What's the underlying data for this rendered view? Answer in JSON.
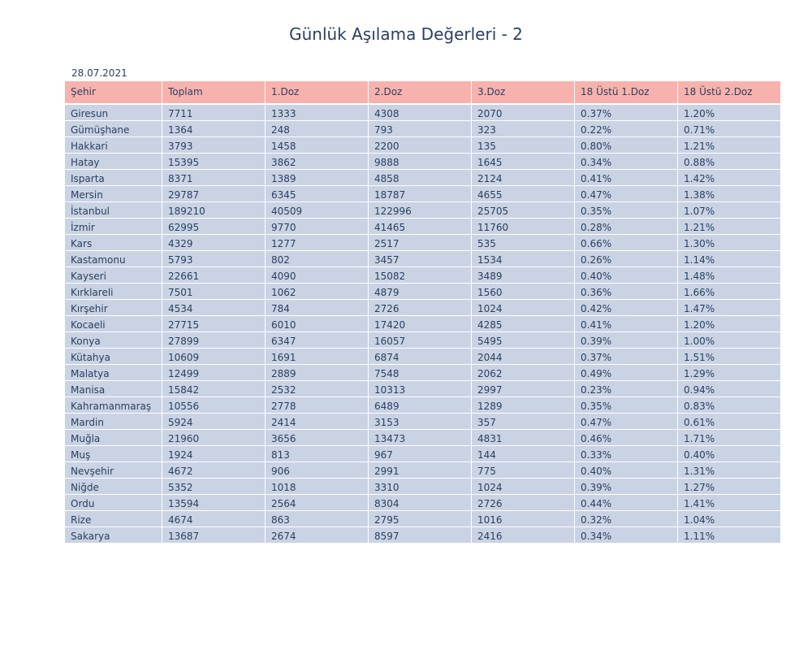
{
  "title": "Günlük Aşılama Değerleri - 2",
  "date": "28.07.2021",
  "chart_data": {
    "type": "table",
    "title": "Günlük Aşılama Değerleri - 2",
    "subtitle": "28.07.2021",
    "columns": [
      "Şehir",
      "Toplam",
      "1.Doz",
      "2.Doz",
      "3.Doz",
      "18 Üstü 1.Doz",
      "18 Üstü 2.Doz"
    ],
    "rows": [
      [
        "Giresun",
        "7711",
        "1333",
        "4308",
        "2070",
        "0.37%",
        "1.20%"
      ],
      [
        "Gümüşhane",
        "1364",
        "248",
        "793",
        "323",
        "0.22%",
        "0.71%"
      ],
      [
        "Hakkari",
        "3793",
        "1458",
        "2200",
        "135",
        "0.80%",
        "1.21%"
      ],
      [
        "Hatay",
        "15395",
        "3862",
        "9888",
        "1645",
        "0.34%",
        "0.88%"
      ],
      [
        "Isparta",
        "8371",
        "1389",
        "4858",
        "2124",
        "0.41%",
        "1.42%"
      ],
      [
        "Mersin",
        "29787",
        "6345",
        "18787",
        "4655",
        "0.47%",
        "1.38%"
      ],
      [
        "İstanbul",
        "189210",
        "40509",
        "122996",
        "25705",
        "0.35%",
        "1.07%"
      ],
      [
        "İzmir",
        "62995",
        "9770",
        "41465",
        "11760",
        "0.28%",
        "1.21%"
      ],
      [
        "Kars",
        "4329",
        "1277",
        "2517",
        "535",
        "0.66%",
        "1.30%"
      ],
      [
        "Kastamonu",
        "5793",
        "802",
        "3457",
        "1534",
        "0.26%",
        "1.14%"
      ],
      [
        "Kayseri",
        "22661",
        "4090",
        "15082",
        "3489",
        "0.40%",
        "1.48%"
      ],
      [
        "Kırklareli",
        "7501",
        "1062",
        "4879",
        "1560",
        "0.36%",
        "1.66%"
      ],
      [
        "Kırşehir",
        "4534",
        "784",
        "2726",
        "1024",
        "0.42%",
        "1.47%"
      ],
      [
        "Kocaeli",
        "27715",
        "6010",
        "17420",
        "4285",
        "0.41%",
        "1.20%"
      ],
      [
        "Konya",
        "27899",
        "6347",
        "16057",
        "5495",
        "0.39%",
        "1.00%"
      ],
      [
        "Kütahya",
        "10609",
        "1691",
        "6874",
        "2044",
        "0.37%",
        "1.51%"
      ],
      [
        "Malatya",
        "12499",
        "2889",
        "7548",
        "2062",
        "0.49%",
        "1.29%"
      ],
      [
        "Manisa",
        "15842",
        "2532",
        "10313",
        "2997",
        "0.23%",
        "0.94%"
      ],
      [
        "Kahramanmaraş",
        "10556",
        "2778",
        "6489",
        "1289",
        "0.35%",
        "0.83%"
      ],
      [
        "Mardin",
        "5924",
        "2414",
        "3153",
        "357",
        "0.47%",
        "0.61%"
      ],
      [
        "Muğla",
        "21960",
        "3656",
        "13473",
        "4831",
        "0.46%",
        "1.71%"
      ],
      [
        "Muş",
        "1924",
        "813",
        "967",
        "144",
        "0.33%",
        "0.40%"
      ],
      [
        "Nevşehir",
        "4672",
        "906",
        "2991",
        "775",
        "0.40%",
        "1.31%"
      ],
      [
        "Niğde",
        "5352",
        "1018",
        "3310",
        "1024",
        "0.39%",
        "1.27%"
      ],
      [
        "Ordu",
        "13594",
        "2564",
        "8304",
        "2726",
        "0.44%",
        "1.41%"
      ],
      [
        "Rize",
        "4674",
        "863",
        "2795",
        "1016",
        "0.32%",
        "1.04%"
      ],
      [
        "Sakarya",
        "13687",
        "2674",
        "8597",
        "2416",
        "0.34%",
        "1.11%"
      ]
    ],
    "header_color": "#f8b2ad",
    "cell_color": "#c9d3e4",
    "text_color": "#2a3f5f"
  }
}
